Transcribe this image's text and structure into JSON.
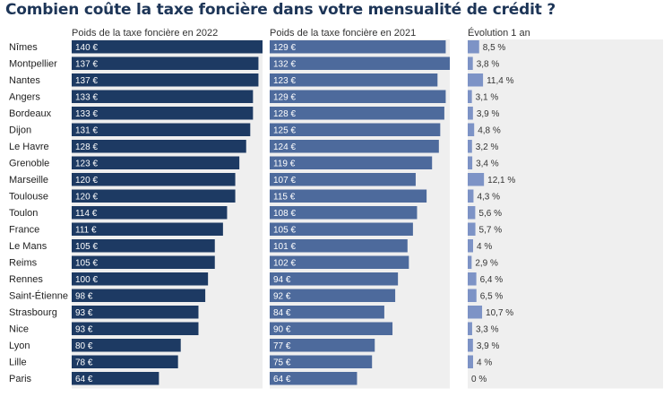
{
  "title": "Combien coûte la taxe foncière dans votre mensualité de crédit ?",
  "chart_data": {
    "type": "bar",
    "title": "Combien coûte la taxe foncière dans votre mensualité de crédit ?",
    "categories": [
      "Nîmes",
      "Montpellier",
      "Nantes",
      "Angers",
      "Bordeaux",
      "Dijon",
      "Le Havre",
      "Grenoble",
      "Marseille",
      "Toulouse",
      "Toulon",
      "France",
      "Le Mans",
      "Reims",
      "Rennes",
      "Saint-Étienne",
      "Strasbourg",
      "Nice",
      "Lyon",
      "Lille",
      "Paris"
    ],
    "series": [
      {
        "name": "Poids de la taxe foncière en 2022",
        "unit": "€",
        "values": [
          140,
          137,
          137,
          133,
          133,
          131,
          128,
          123,
          120,
          120,
          114,
          111,
          105,
          105,
          100,
          98,
          93,
          93,
          80,
          78,
          64
        ]
      },
      {
        "name": "Poids de la taxe foncière en 2021",
        "unit": "€",
        "values": [
          129,
          132,
          123,
          129,
          128,
          125,
          124,
          119,
          107,
          115,
          108,
          105,
          101,
          102,
          94,
          92,
          84,
          90,
          77,
          75,
          64
        ]
      },
      {
        "name": "Évolution 1 an",
        "unit": "%",
        "values": [
          8.5,
          3.8,
          11.4,
          3.1,
          3.9,
          4.8,
          3.2,
          3.4,
          12.1,
          4.3,
          5.6,
          5.7,
          4,
          2.9,
          6.4,
          6.5,
          10.7,
          3.3,
          3.9,
          4,
          0
        ]
      }
    ],
    "value_labels": [
      [
        "140 €",
        "137 €",
        "137 €",
        "133 €",
        "133 €",
        "131 €",
        "128 €",
        "123 €",
        "120 €",
        "120 €",
        "114 €",
        "111 €",
        "105 €",
        "105 €",
        "100 €",
        "98 €",
        "93 €",
        "93 €",
        "80 €",
        "78 €",
        "64 €"
      ],
      [
        "129 €",
        "132 €",
        "123 €",
        "129 €",
        "128 €",
        "125 €",
        "124 €",
        "119 €",
        "107 €",
        "115 €",
        "108 €",
        "105 €",
        "101 €",
        "102 €",
        "94 €",
        "92 €",
        "84 €",
        "90 €",
        "77 €",
        "75 €",
        "64 €"
      ],
      [
        "8,5 %",
        "3,8 %",
        "11,4 %",
        "3,1 %",
        "3,9 %",
        "4,8 %",
        "3,2 %",
        "3,4 %",
        "12,1 %",
        "4,3 %",
        "5,6 %",
        "5,7 %",
        "4 %",
        "2,9 %",
        "6,4 %",
        "6,5 %",
        "10,7 %",
        "3,3 %",
        "3,9 %",
        "4 %",
        "0 %"
      ]
    ],
    "colors": [
      "#1d3a63",
      "#4d6a9c",
      "#7d93c6"
    ],
    "background_color": "#efefef",
    "grid": false,
    "legend": "none"
  }
}
